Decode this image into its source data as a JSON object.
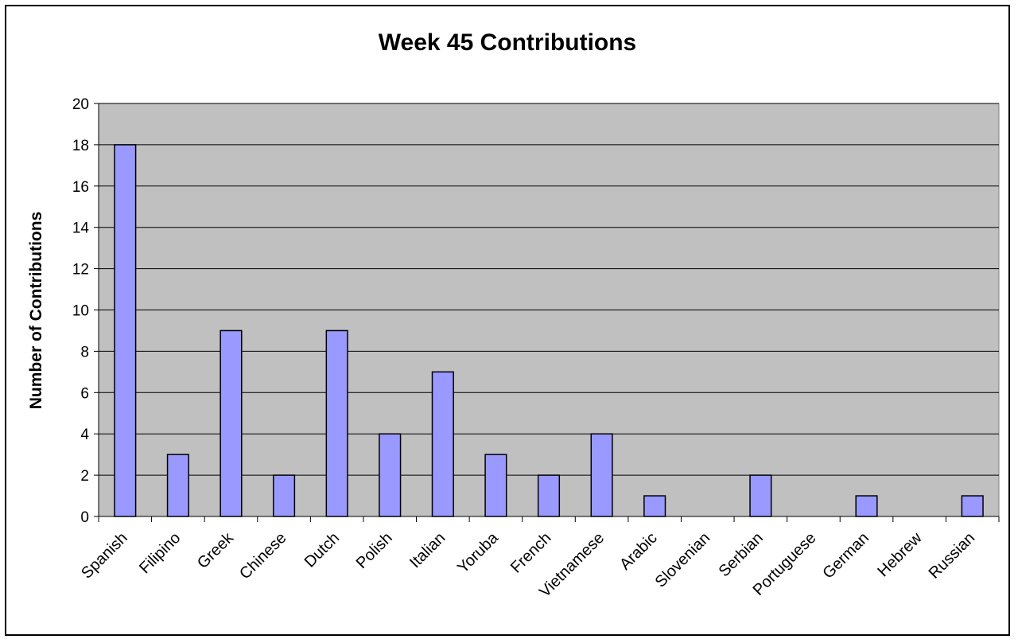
{
  "chart_data": {
    "type": "bar",
    "title": "Week 45 Contributions",
    "xlabel": "",
    "ylabel": "Number of Contributions",
    "ylim": [
      0,
      20
    ],
    "yticks": [
      0,
      2,
      4,
      6,
      8,
      10,
      12,
      14,
      16,
      18,
      20
    ],
    "categories": [
      "Spanish",
      "Filipino",
      "Greek",
      "Chinese",
      "Dutch",
      "Polish",
      "Italian",
      "Yoruba",
      "French",
      "Vietnamese",
      "Arabic",
      "Slovenian",
      "Serbian",
      "Portuguese",
      "German",
      "Hebrew",
      "Russian"
    ],
    "values": [
      18,
      3,
      9,
      2,
      9,
      4,
      7,
      3,
      2,
      4,
      1,
      0,
      2,
      0,
      1,
      0,
      1
    ],
    "grid": true,
    "legend": "none",
    "colors": {
      "bar_fill": "#9999ff",
      "bar_stroke": "#000000",
      "plot_background": "#c0c0c0",
      "gridline": "#000000"
    }
  }
}
